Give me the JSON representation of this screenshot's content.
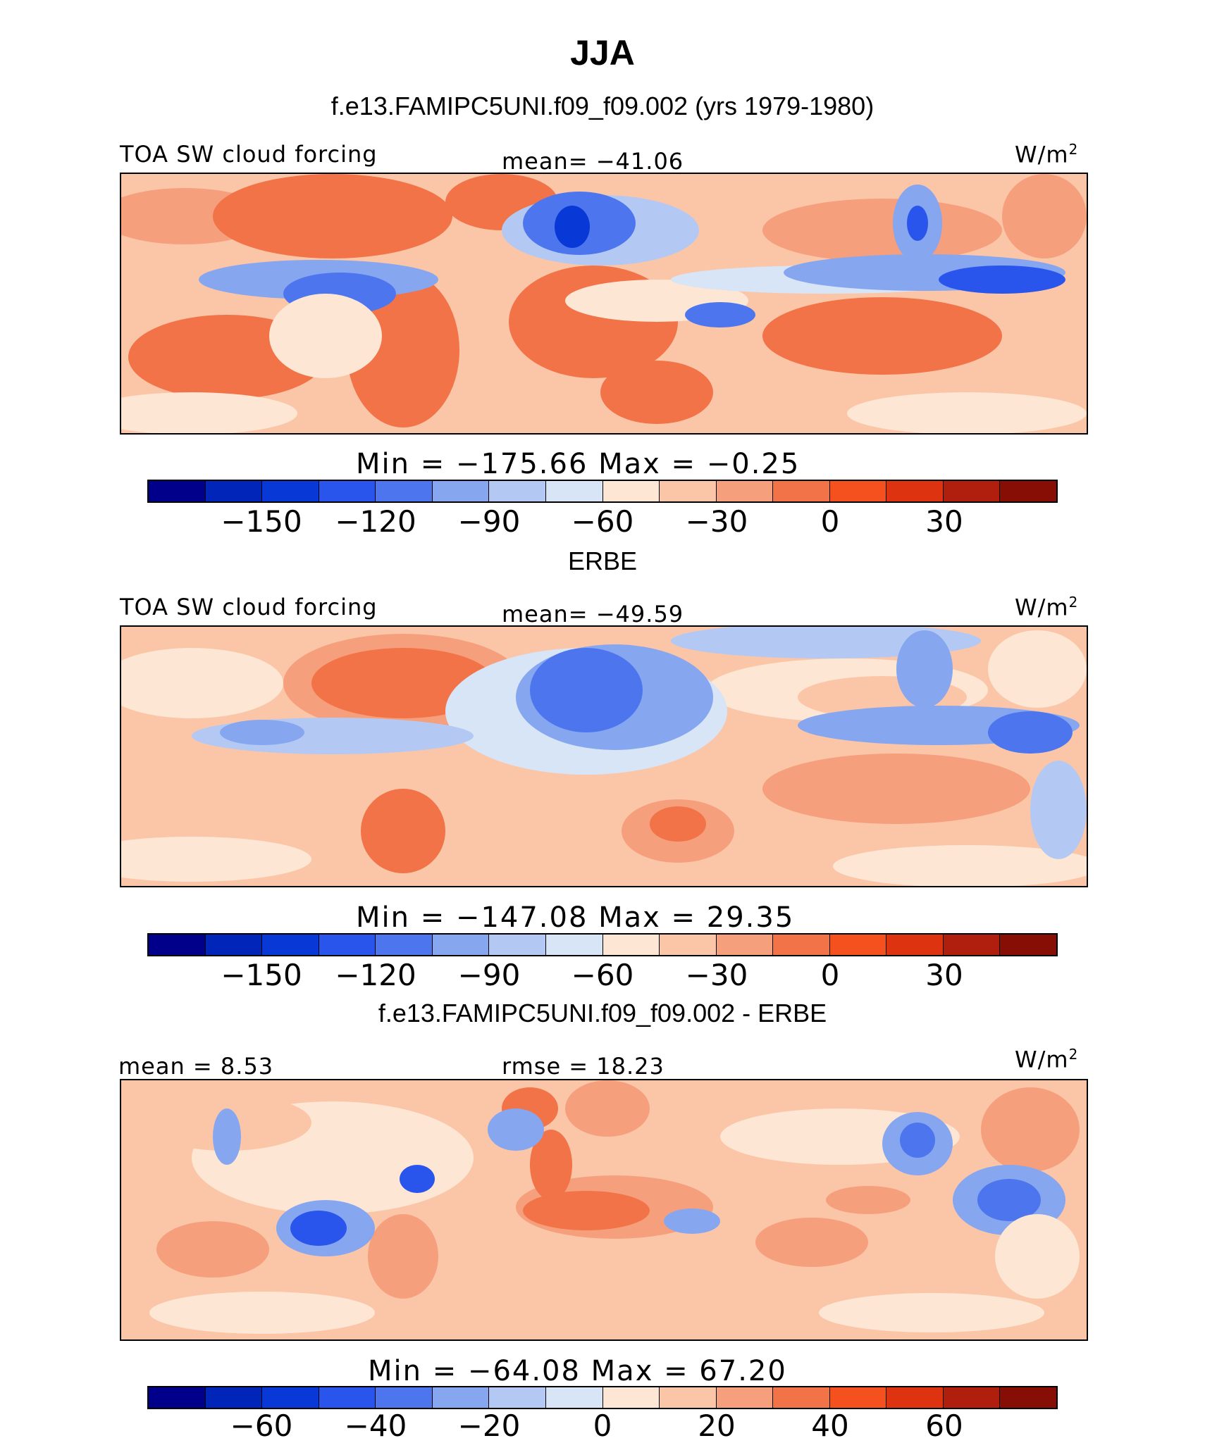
{
  "page": {
    "season": "JJA",
    "case_title": "f.e13.FAMIPC5UNI.f09_f09.002 (yrs 1979-1980)"
  },
  "colors": {
    "scale": [
      "#00008b",
      "#0025b8",
      "#0839d6",
      "#2a55ec",
      "#4d76ee",
      "#86a6f0",
      "#b3c9f3",
      "#d7e5f7",
      "#fde6d4",
      "#fbc6a8",
      "#f69f7d",
      "#f27348",
      "#f4511f",
      "#dd3311",
      "#b01f0e",
      "#860e05"
    ],
    "border": "#000000"
  },
  "chart_data": [
    {
      "type": "heatmap",
      "panel_title": "",
      "variable": "TOA SW cloud forcing",
      "units_base": "W/m",
      "units_exp": "2",
      "stat_text": "mean=  −41.06",
      "min_max": "Min  =  −175.66  Max  =   −0.25",
      "min": -175.66,
      "max": -0.25,
      "mean": -41.06,
      "colorbar_ticks": [
        "−150",
        "−120",
        "−90",
        "−60",
        "−30",
        "0",
        "30"
      ],
      "levels": [
        -165,
        -150,
        -135,
        -120,
        -105,
        -90,
        -75,
        -60,
        -45,
        -30,
        -15,
        0,
        15,
        30,
        45
      ]
    },
    {
      "type": "heatmap",
      "panel_title": "ERBE",
      "variable": "TOA SW cloud forcing",
      "units_base": "W/m",
      "units_exp": "2",
      "stat_text": "mean=  −49.59",
      "min_max": "Min  =  −147.08  Max  =   29.35",
      "min": -147.08,
      "max": 29.35,
      "mean": -49.59,
      "colorbar_ticks": [
        "−150",
        "−120",
        "−90",
        "−60",
        "−30",
        "0",
        "30"
      ],
      "levels": [
        -165,
        -150,
        -135,
        -120,
        -105,
        -90,
        -75,
        -60,
        -45,
        -30,
        -15,
        0,
        15,
        30,
        45
      ]
    },
    {
      "type": "heatmap",
      "panel_title": "f.e13.FAMIPC5UNI.f09_f09.002 - ERBE",
      "units_base": "W/m",
      "units_exp": "2",
      "mean_text": "mean  =    8.53",
      "rmse_text": "rmse  =   18.23",
      "min_max": "Min  =  −64.08  Max  =   67.20",
      "min": -64.08,
      "max": 67.2,
      "mean": 8.53,
      "rmse": 18.23,
      "colorbar_ticks": [
        "−60",
        "−40",
        "−20",
        "0",
        "20",
        "40",
        "60"
      ],
      "levels": [
        -70,
        -60,
        -50,
        -40,
        -30,
        -20,
        -10,
        0,
        10,
        20,
        30,
        40,
        50,
        60,
        70
      ]
    }
  ]
}
